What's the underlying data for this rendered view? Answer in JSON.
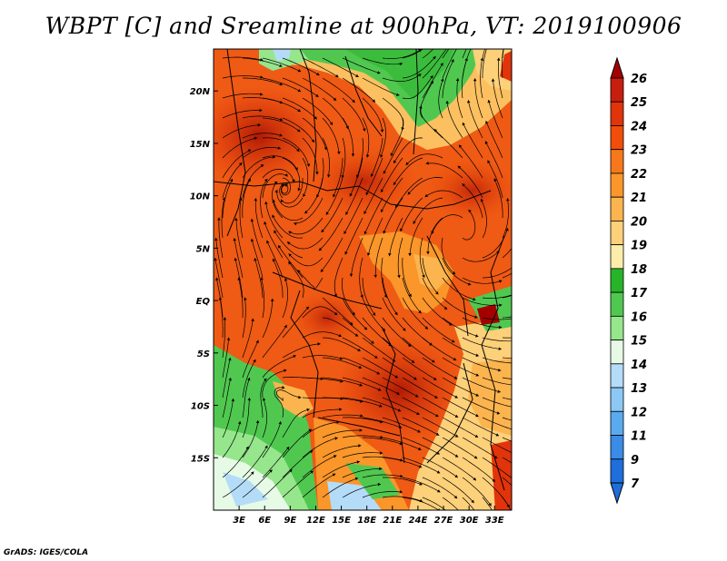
{
  "title": "WBPT [C] and Sreamline at 900hPa, VT: 2019100906",
  "footer": "GrADS: IGES/COLA",
  "map": {
    "lon_range": [
      0,
      35
    ],
    "lat_range": [
      -20,
      24
    ],
    "lat_ticks": [
      "20N",
      "15N",
      "10N",
      "5N",
      "EQ",
      "5S",
      "10S",
      "15S"
    ],
    "lon_ticks": [
      "3E",
      "6E",
      "9E",
      "12E",
      "15E",
      "18E",
      "21E",
      "24E",
      "27E",
      "30E",
      "33E"
    ]
  },
  "colorbar": {
    "labels": [
      "26",
      "25",
      "24",
      "23",
      "22",
      "21",
      "20",
      "19",
      "18",
      "17",
      "16",
      "15",
      "14",
      "13",
      "12",
      "11",
      "9",
      "7"
    ],
    "colors": [
      "#a50000",
      "#c81e0f",
      "#e1340a",
      "#f04e0a",
      "#f6781a",
      "#fa962a",
      "#fcb44e",
      "#fdd07a",
      "#fdedaa",
      "#28b42a",
      "#50c850",
      "#96e68c",
      "#e6fae6",
      "#b4dcf8",
      "#8cc8f5",
      "#5aaaf0",
      "#3a8ce6",
      "#1e6edc"
    ]
  }
}
